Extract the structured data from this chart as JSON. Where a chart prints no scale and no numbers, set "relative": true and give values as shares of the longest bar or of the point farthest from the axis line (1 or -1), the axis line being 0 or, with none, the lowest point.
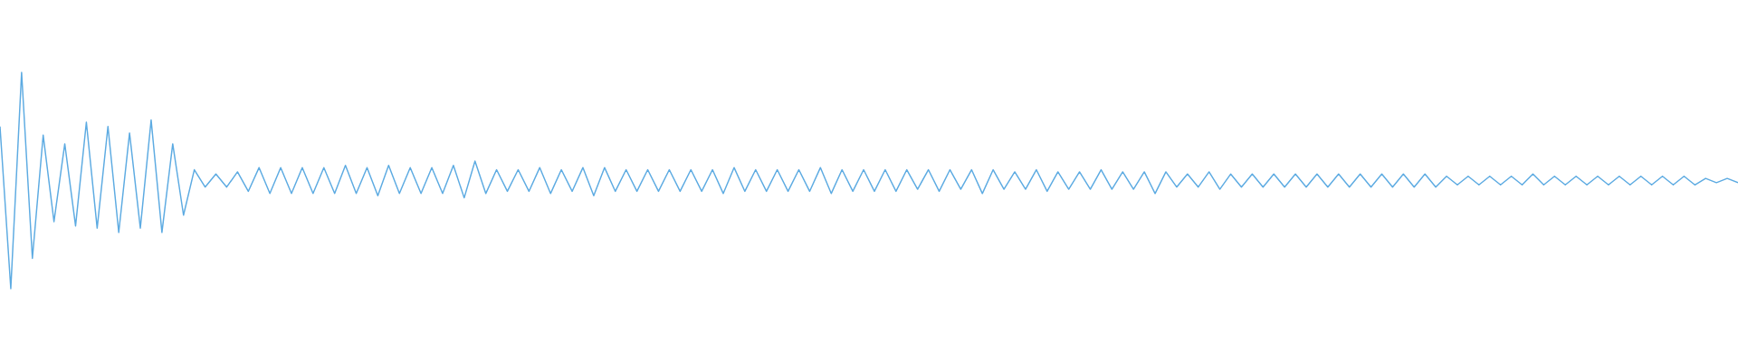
{
  "chart_data": {
    "type": "line",
    "relative": true,
    "color": "#5dabe2",
    "categories": [
      null,
      null,
      null,
      null,
      null,
      null,
      null,
      null,
      null,
      null,
      null,
      null,
      null,
      null,
      null,
      null,
      null,
      null,
      null,
      null,
      null,
      null,
      null,
      null,
      null,
      null,
      null,
      null,
      null,
      null,
      null,
      null,
      null,
      null,
      null,
      null,
      null,
      null,
      null,
      null,
      null,
      null,
      null,
      null,
      null,
      null,
      null,
      null,
      null,
      null,
      null,
      null,
      null,
      null,
      null,
      null,
      null,
      null,
      null,
      null,
      null,
      null,
      null,
      null,
      null,
      null,
      null,
      null,
      null,
      null,
      null,
      null,
      null,
      null,
      null,
      null,
      null,
      null,
      null,
      null,
      null,
      null,
      null,
      null,
      null,
      null,
      null,
      null,
      null,
      null,
      null,
      null,
      null,
      null,
      null,
      null,
      null,
      null,
      null,
      null,
      null,
      null,
      null,
      null,
      null,
      null,
      null,
      null,
      null,
      null,
      null,
      null,
      null,
      null,
      null,
      null,
      null,
      null,
      null,
      null,
      null,
      null,
      null,
      null,
      null,
      null,
      null,
      null,
      null,
      null,
      null,
      null,
      null,
      null,
      null,
      null,
      null,
      null,
      null,
      null,
      null,
      null,
      null,
      null,
      null,
      null,
      null,
      null,
      null,
      null,
      null,
      null,
      null,
      null,
      null,
      null,
      null,
      null,
      null,
      null,
      null,
      null
    ],
    "values": [
      0.75,
      0.0,
      1.0,
      0.14,
      0.71,
      0.31,
      0.67,
      0.29,
      0.77,
      0.28,
      0.75,
      0.26,
      0.72,
      0.28,
      0.78,
      0.26,
      0.67,
      0.34,
      0.55,
      0.47,
      0.53,
      0.47,
      0.54,
      0.45,
      0.56,
      0.44,
      0.56,
      0.44,
      0.56,
      0.44,
      0.56,
      0.44,
      0.57,
      0.44,
      0.56,
      0.43,
      0.57,
      0.44,
      0.56,
      0.44,
      0.56,
      0.44,
      0.57,
      0.42,
      0.59,
      0.44,
      0.55,
      0.45,
      0.55,
      0.45,
      0.56,
      0.44,
      0.55,
      0.45,
      0.56,
      0.43,
      0.56,
      0.45,
      0.55,
      0.45,
      0.55,
      0.45,
      0.55,
      0.45,
      0.55,
      0.45,
      0.55,
      0.44,
      0.56,
      0.45,
      0.55,
      0.45,
      0.55,
      0.45,
      0.55,
      0.45,
      0.56,
      0.44,
      0.55,
      0.45,
      0.55,
      0.45,
      0.55,
      0.45,
      0.55,
      0.46,
      0.55,
      0.45,
      0.55,
      0.46,
      0.55,
      0.44,
      0.55,
      0.46,
      0.54,
      0.46,
      0.55,
      0.45,
      0.54,
      0.46,
      0.54,
      0.46,
      0.55,
      0.46,
      0.54,
      0.46,
      0.54,
      0.44,
      0.54,
      0.47,
      0.53,
      0.47,
      0.54,
      0.46,
      0.53,
      0.47,
      0.53,
      0.47,
      0.53,
      0.47,
      0.53,
      0.47,
      0.53,
      0.47,
      0.53,
      0.47,
      0.53,
      0.47,
      0.53,
      0.47,
      0.53,
      0.47,
      0.53,
      0.47,
      0.52,
      0.48,
      0.52,
      0.48,
      0.52,
      0.48,
      0.52,
      0.48,
      0.53,
      0.48,
      0.52,
      0.48,
      0.52,
      0.48,
      0.52,
      0.48,
      0.52,
      0.48,
      0.52,
      0.48,
      0.52,
      0.48,
      0.52,
      0.48,
      0.51,
      0.49,
      0.51,
      0.49
    ]
  }
}
